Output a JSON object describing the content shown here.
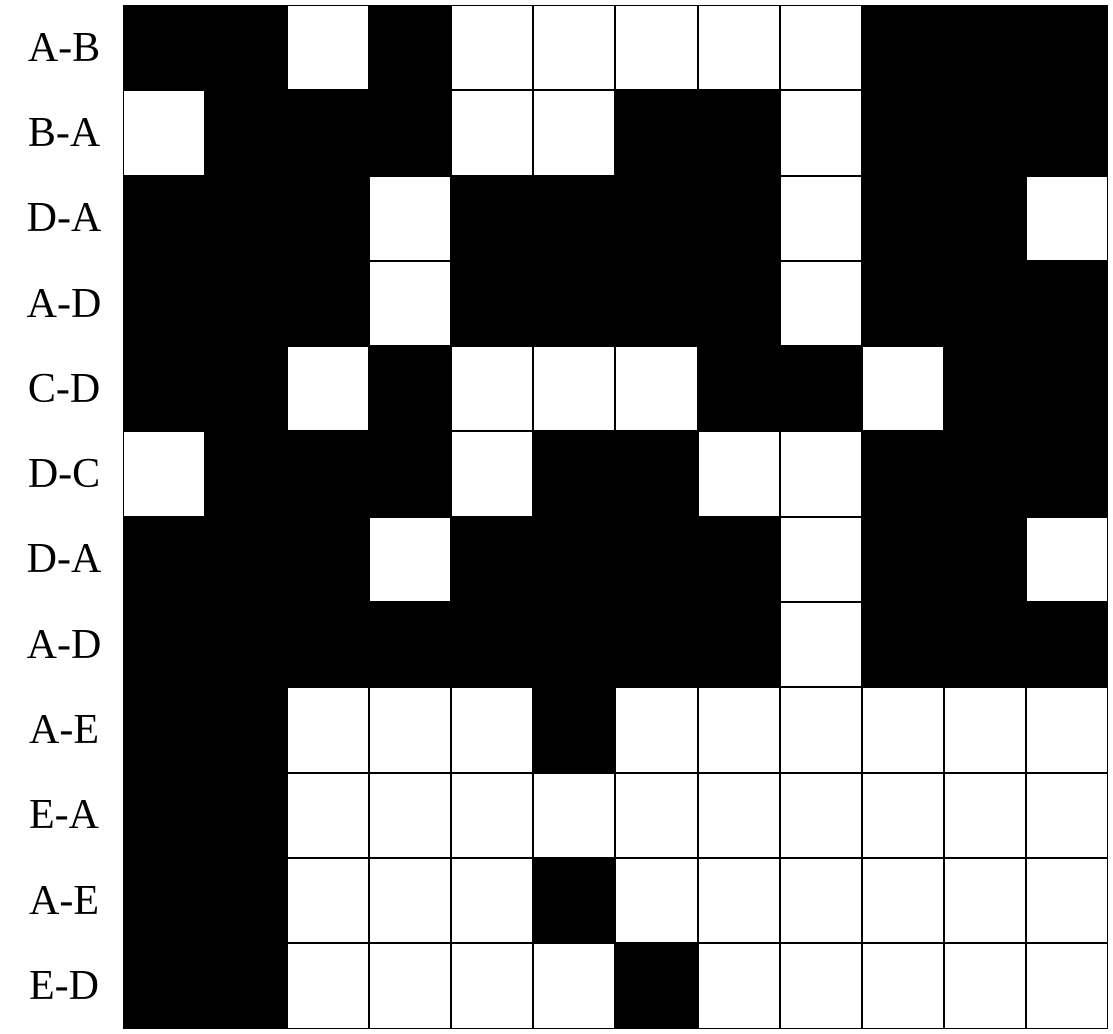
{
  "heatmap": {
    "type": "heatmap",
    "cell_colors": {
      "black": "#000000",
      "white": "#ffffff"
    },
    "border_color": "#000000",
    "border_width": 1,
    "background_color": "#ffffff",
    "label_font_family": "Times New Roman",
    "label_font_size_pt": 32,
    "label_color": "#000000",
    "n_rows": 12,
    "n_cols": 12,
    "rows": [
      {
        "label": "A-B",
        "cells": [
          1,
          1,
          0,
          1,
          0,
          0,
          0,
          0,
          0,
          1,
          1,
          1
        ]
      },
      {
        "label": "B-A",
        "cells": [
          0,
          1,
          1,
          1,
          0,
          0,
          1,
          1,
          0,
          1,
          1,
          1
        ]
      },
      {
        "label": "D-A",
        "cells": [
          1,
          1,
          1,
          0,
          1,
          1,
          1,
          1,
          0,
          1,
          1,
          0
        ]
      },
      {
        "label": "A-D",
        "cells": [
          1,
          1,
          1,
          0,
          1,
          1,
          1,
          1,
          0,
          1,
          1,
          1
        ]
      },
      {
        "label": "C-D",
        "cells": [
          1,
          1,
          0,
          1,
          0,
          0,
          0,
          1,
          1,
          0,
          1,
          1
        ]
      },
      {
        "label": "D-C",
        "cells": [
          0,
          1,
          1,
          1,
          0,
          1,
          1,
          0,
          0,
          1,
          1,
          1
        ]
      },
      {
        "label": "D-A",
        "cells": [
          1,
          1,
          1,
          0,
          1,
          1,
          1,
          1,
          0,
          1,
          1,
          0
        ]
      },
      {
        "label": "A-D",
        "cells": [
          1,
          1,
          1,
          1,
          1,
          1,
          1,
          1,
          0,
          1,
          1,
          1
        ]
      },
      {
        "label": "A-E",
        "cells": [
          1,
          1,
          0,
          0,
          0,
          1,
          0,
          0,
          0,
          0,
          0,
          0
        ]
      },
      {
        "label": "E-A",
        "cells": [
          1,
          1,
          0,
          0,
          0,
          0,
          0,
          0,
          0,
          0,
          0,
          0
        ]
      },
      {
        "label": "A-E",
        "cells": [
          1,
          1,
          0,
          0,
          0,
          1,
          0,
          0,
          0,
          0,
          0,
          0
        ]
      },
      {
        "label": "E-D",
        "cells": [
          1,
          1,
          0,
          0,
          0,
          0,
          1,
          0,
          0,
          0,
          0,
          0
        ]
      }
    ]
  }
}
